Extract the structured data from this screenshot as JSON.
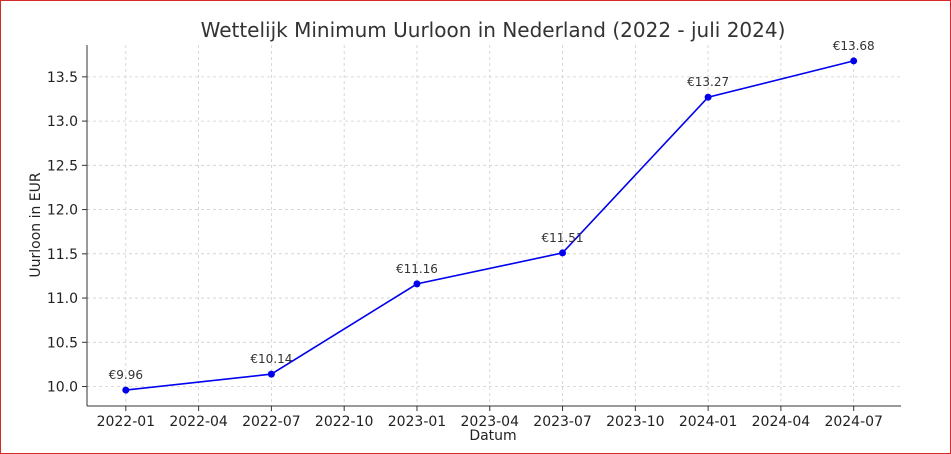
{
  "chart_data": {
    "type": "line",
    "title": "Wettelijk Minimum Uurloon in Nederland (2022 - juli 2024)",
    "xlabel": "Datum",
    "ylabel": "Uurloon in EUR",
    "x": [
      "2022-01",
      "2022-07",
      "2023-01",
      "2023-07",
      "2024-01",
      "2024-07"
    ],
    "series": [
      {
        "values": [
          9.96,
          10.14,
          11.16,
          11.51,
          13.27,
          13.68
        ],
        "color": "#0000ee"
      }
    ],
    "data_labels": [
      "€9.96",
      "€10.14",
      "€11.16",
      "€11.51",
      "€13.27",
      "€13.68"
    ],
    "x_ticks": [
      "2022-01",
      "2022-04",
      "2022-07",
      "2022-10",
      "2023-01",
      "2023-04",
      "2023-07",
      "2023-10",
      "2024-01",
      "2024-04",
      "2024-07"
    ],
    "y_ticks": [
      "10.0",
      "10.5",
      "11.0",
      "11.5",
      "12.0",
      "12.5",
      "13.0",
      "13.5"
    ],
    "xlim": [
      "2021-11",
      "2024-09"
    ],
    "ylim": [
      9.78,
      13.86
    ],
    "grid": true,
    "legend": false
  }
}
